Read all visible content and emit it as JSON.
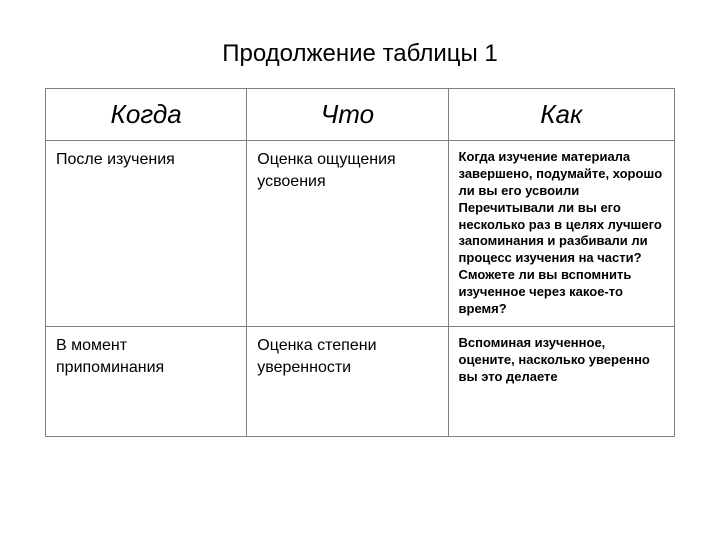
{
  "title": "Продолжение таблицы 1",
  "table": {
    "headers": [
      "Когда",
      "Что",
      "Как"
    ],
    "rows": [
      {
        "col1": "После изучения",
        "col2": "Оценка ощущения усвоения",
        "col3": "Когда изучение материала завершено, подумайте, хорошо ли вы его усвоили Перечитывали ли вы его несколько раз в целях лучшего запоминания и разбивали ли процесс изучения на части? Сможете ли вы вспомнить изученное через какое-то время?"
      },
      {
        "col1": "В момент припоминания",
        "col2": "Оценка степени уверенности",
        "col3": "Вспоминая изученное, оцените, насколько уверенно вы это делаете"
      }
    ],
    "styling": {
      "border_color": "#808080",
      "background_color": "#ffffff",
      "title_fontsize": 24,
      "header_fontsize": 26,
      "header_style": "italic",
      "cell_normal_fontsize": 16,
      "cell_bold_fontsize": 13,
      "col_widths": [
        "32%",
        "32%",
        "36%"
      ]
    }
  }
}
